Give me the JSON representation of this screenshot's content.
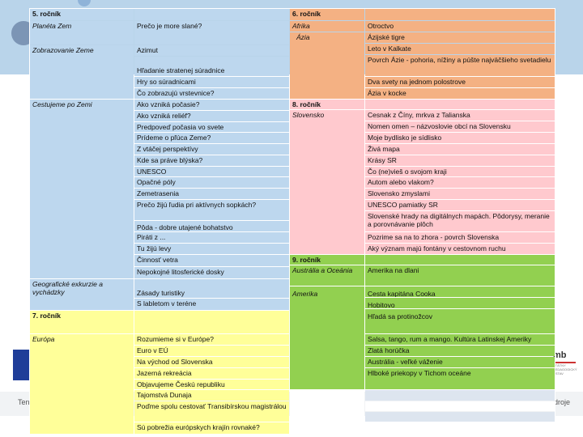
{
  "sections": {
    "grade5": "5. ročník",
    "grade6": "6. ročník",
    "grade7": "7. ročník",
    "grade8": "8. ročník",
    "grade9": "9. ročník"
  },
  "col1": [
    "Planéta Zem",
    "Zobrazovanie Zeme",
    "Cestujeme po Zemi",
    "Geografické exkurzie a vychádzky",
    "Európa"
  ],
  "col2": [
    "Prečo je more slané?",
    "Azimut",
    "Hľadanie stratenej súradnice",
    "Hry so súradnicami",
    "Čo zobrazujú vrstevnice?",
    "Ako vzniká počasie?",
    "Ako vzniká reliéf?",
    "Predpoveď počasia vo svete",
    "Prídeme o pľúca Zeme?",
    "Z vtáčej perspektívy",
    "Kde sa práve blýska?",
    "UNESCO",
    "Opačné póly",
    "Zemetrasenia",
    "Prečo žijú ľudia pri aktívnych sopkách?",
    "Pôda - dobre utajené bohatstvo",
    "Piráti z ...",
    "Tu žijú levy",
    "Činnosť vetra",
    "Nepokojné litosferické dosky",
    "Zásady turistiky",
    "S labletom v teréne",
    "Rozumieme si v Európe?",
    "Euro v EÚ",
    "Na východ od Slovenska",
    "Jazerná rekreácia",
    "Objavujeme Českú republiku",
    "Tajomstvá Dunaja",
    "Poďme spolu cestovať Transibírskou magistrálou",
    "Sú pobrežia európskych krajín rovnaké?"
  ],
  "col3": [
    "Afrika",
    "Ázia",
    "Slovensko",
    "Austrália a Oceánia",
    "Amerika"
  ],
  "col4": [
    "Otroctvo",
    "Ázijské tigre",
    "Leto v Kalkate",
    "Povrch Ázie - pohoria, nížiny a púšte najväčšieho svetadielu",
    "Dva svety na jednom polostrove",
    "Ázia v kocke",
    "Cesnak z Číny, mrkva z Talianska",
    "Nomen omen – názvoslovie obcí na Slovensku",
    "Moje bydlisko je sídlisko",
    "Živá mapa",
    "Krásy SR",
    "Čo (ne)vieš o svojom kraji",
    "Autom alebo vlakom?",
    "Slovensko zmyslami",
    "UNESCO pamiatky SR",
    "Slovenské hrady na digitálnych mapách. Pôdorysy, meranie a porovnávanie plôch",
    "Pozrime sa na to zhora - povrch Slovenska",
    "Aký význam majú fontány v cestovnom ruchu",
    "Amerika na dlani",
    "Cesta kapitána Cooka",
    "Hobitovo",
    "Hľadá sa protinožcov",
    "Salsa, tango, rum a mango. Kultúra Latinskej Ameriky",
    "Zlatá horúčka",
    "Austrália - veľké váženie",
    "Hlboké priekopy v Tichom oceáne"
  ],
  "footer": {
    "left": "Tent",
    "right": "droje"
  },
  "logo": {
    "text": "mb",
    "sub": "ŠTÁTNY PEDAGOGICKÝ ÚSTAV"
  }
}
